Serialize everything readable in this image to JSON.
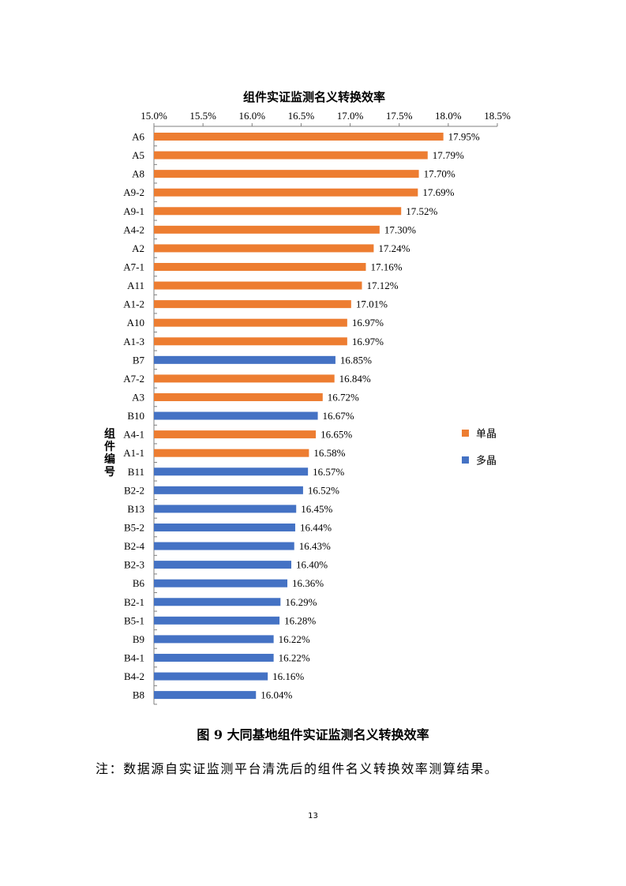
{
  "chart_data": {
    "type": "bar",
    "orientation": "horizontal",
    "title": "组件实证监测名义转换效率",
    "ylabel": "组件编号",
    "xlabel": "",
    "xlim": [
      15.0,
      18.5
    ],
    "x_ticks": [
      "15.0%",
      "15.5%",
      "16.0%",
      "16.5%",
      "17.0%",
      "17.5%",
      "18.0%",
      "18.5%"
    ],
    "x_axis_position": "top",
    "grid": false,
    "legend_position": "right",
    "legend": [
      {
        "name": "单晶",
        "color": "#ED7D31"
      },
      {
        "name": "多晶",
        "color": "#4472C4"
      }
    ],
    "colors": {
      "单晶": "#ED7D31",
      "多晶": "#4472C4"
    },
    "categories": [
      "A6",
      "A5",
      "A8",
      "A9-2",
      "A9-1",
      "A4-2",
      "A2",
      "A7-1",
      "A11",
      "A1-2",
      "A10",
      "A1-3",
      "B7",
      "A7-2",
      "A3",
      "B10",
      "A4-1",
      "A1-1",
      "B11",
      "B2-2",
      "B13",
      "B5-2",
      "B2-4",
      "B2-3",
      "B6",
      "B2-1",
      "B5-1",
      "B9",
      "B4-1",
      "B4-2",
      "B8"
    ],
    "values": [
      17.95,
      17.79,
      17.7,
      17.69,
      17.52,
      17.3,
      17.24,
      17.16,
      17.12,
      17.01,
      16.97,
      16.97,
      16.85,
      16.84,
      16.72,
      16.67,
      16.65,
      16.58,
      16.57,
      16.52,
      16.45,
      16.44,
      16.43,
      16.4,
      16.36,
      16.29,
      16.28,
      16.22,
      16.22,
      16.16,
      16.04
    ],
    "data_labels": [
      "17.95%",
      "17.79%",
      "17.70%",
      "17.69%",
      "17.52%",
      "17.30%",
      "17.24%",
      "17.16%",
      "17.12%",
      "17.01%",
      "16.97%",
      "16.97%",
      "16.85%",
      "16.84%",
      "16.72%",
      "16.67%",
      "16.65%",
      "16.58%",
      "16.57%",
      "16.52%",
      "16.45%",
      "16.44%",
      "16.43%",
      "16.40%",
      "16.36%",
      "16.29%",
      "16.28%",
      "16.22%",
      "16.22%",
      "16.16%",
      "16.04%"
    ],
    "types": [
      "单晶",
      "单晶",
      "单晶",
      "单晶",
      "单晶",
      "单晶",
      "单晶",
      "单晶",
      "单晶",
      "单晶",
      "单晶",
      "单晶",
      "多晶",
      "单晶",
      "单晶",
      "多晶",
      "单晶",
      "单晶",
      "多晶",
      "多晶",
      "多晶",
      "多晶",
      "多晶",
      "多晶",
      "多晶",
      "多晶",
      "多晶",
      "多晶",
      "多晶",
      "多晶",
      "多晶"
    ]
  },
  "caption": "图 9   大同基地组件实证监测名义转换效率",
  "note": "注：数据源自实证监测平台清洗后的组件名义转换效率测算结果。",
  "page_number": "13"
}
